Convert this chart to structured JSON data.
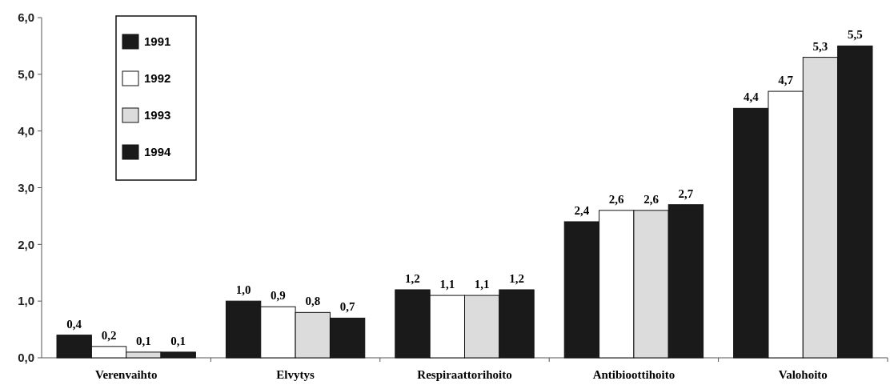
{
  "chart_data": {
    "type": "bar",
    "categories": [
      "Verenvaihto",
      "Elvytys",
      "Respiraattorihoito",
      "Antibioottihoito",
      "Valohoito"
    ],
    "series": [
      {
        "name": "1991",
        "color": "#1a1a1a",
        "values": [
          0.4,
          1.0,
          1.2,
          2.4,
          4.4
        ],
        "value_labels": [
          "0,4",
          "1,0",
          "1,2",
          "2,4",
          "4,4"
        ]
      },
      {
        "name": "1992",
        "color": "#ffffff",
        "values": [
          0.2,
          0.9,
          1.1,
          2.6,
          4.7
        ],
        "value_labels": [
          "0,2",
          "0,9",
          "1,1",
          "2,6",
          "4,7"
        ]
      },
      {
        "name": "1993",
        "color": "#dcdcdc",
        "values": [
          0.1,
          0.8,
          1.1,
          2.6,
          5.3
        ],
        "value_labels": [
          "0,1",
          "0,8",
          "1,1",
          "2,6",
          "5,3"
        ]
      },
      {
        "name": "1994",
        "color": "#1a1a1a",
        "values": [
          0.1,
          0.7,
          1.2,
          2.7,
          5.5
        ],
        "value_labels": [
          "0,1",
          "0,7",
          "1,2",
          "2,7",
          "5,5"
        ]
      }
    ],
    "ylim": [
      0,
      6
    ],
    "yticks": [
      {
        "value": 0,
        "label": "0,0"
      },
      {
        "value": 1,
        "label": "1,0"
      },
      {
        "value": 2,
        "label": "2,0"
      },
      {
        "value": 3,
        "label": "3,0"
      },
      {
        "value": 4,
        "label": "4,0"
      },
      {
        "value": 5,
        "label": "5,0"
      },
      {
        "value": 6,
        "label": "6,0"
      }
    ],
    "legend": "top left"
  }
}
